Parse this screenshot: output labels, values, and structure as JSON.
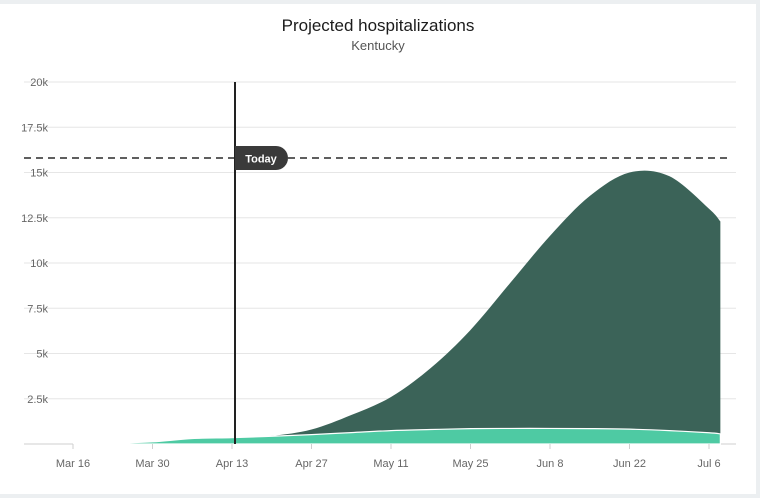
{
  "chart_data": {
    "type": "area",
    "title": "Projected hospitalizations",
    "subtitle": "Kentucky",
    "xlabel": "",
    "ylabel": "",
    "x_ticks": [
      "Mar 16",
      "Mar 30",
      "Apr 13",
      "Apr 27",
      "May 11",
      "May 25",
      "Jun 8",
      "Jun 22",
      "Jul 6"
    ],
    "y_ticks": [
      "20k",
      "17.5k",
      "15k",
      "12.5k",
      "10k",
      "7.5k",
      "5k",
      "2.5k"
    ],
    "ylim": [
      0,
      20000
    ],
    "today_label": "Today",
    "today_date": "Apr 13",
    "capacity_line": 15800,
    "grid": true,
    "series": [
      {
        "color": "#3b6358",
        "x": [
          "Mar 16",
          "Mar 23",
          "Mar 30",
          "Apr 6",
          "Apr 13",
          "Apr 20",
          "Apr 27",
          "May 4",
          "May 11",
          "May 18",
          "May 25",
          "Jun 1",
          "Jun 8",
          "Jun 15",
          "Jun 22",
          "Jun 29",
          "Jul 6",
          "Jul 8"
        ],
        "values": [
          0,
          40,
          120,
          300,
          350,
          450,
          800,
          1600,
          2600,
          4200,
          6300,
          8900,
          11500,
          13700,
          15000,
          14800,
          13000,
          12300
        ]
      },
      {
        "color": "#4ecaa3",
        "x": [
          "Mar 16",
          "Mar 23",
          "Mar 30",
          "Apr 6",
          "Apr 13",
          "Apr 20",
          "Apr 27",
          "May 4",
          "May 11",
          "May 18",
          "May 25",
          "Jun 1",
          "Jun 8",
          "Jun 15",
          "Jun 22",
          "Jun 29",
          "Jul 6",
          "Jul 8"
        ],
        "values": [
          0,
          40,
          120,
          300,
          350,
          430,
          520,
          630,
          740,
          800,
          850,
          860,
          860,
          850,
          820,
          740,
          620,
          560
        ]
      }
    ]
  }
}
